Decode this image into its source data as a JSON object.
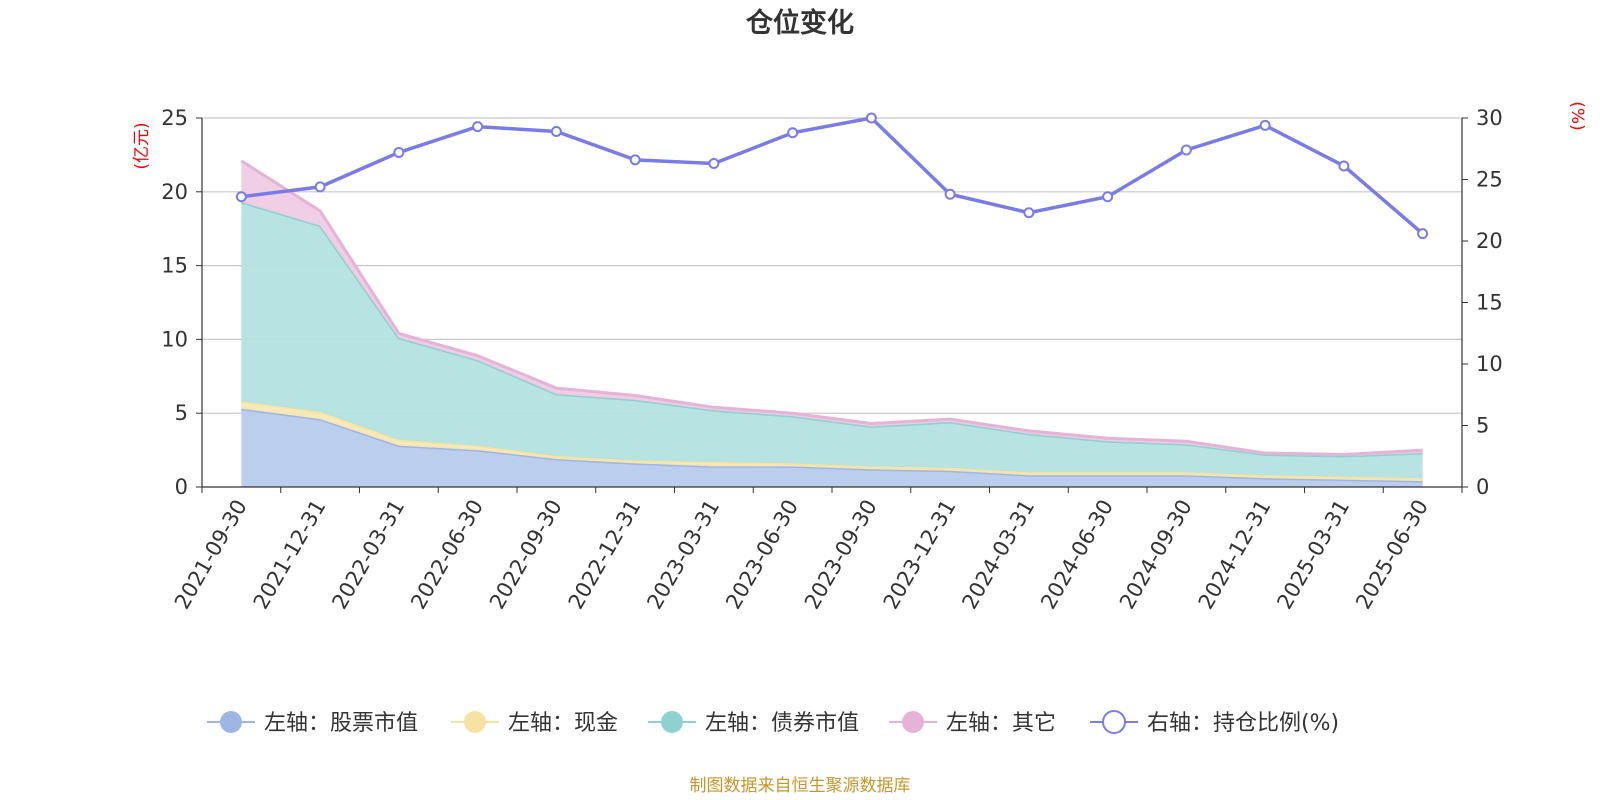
{
  "chart_data": {
    "type": "area",
    "title": "仓位变化",
    "left_axis_unit": "(亿元)",
    "right_axis_unit": "(%)",
    "ylim_left": [
      0,
      25
    ],
    "yticks_left": [
      0,
      5,
      10,
      15,
      20,
      25
    ],
    "ylim_right": [
      0,
      30
    ],
    "yticks_right": [
      0,
      5,
      10,
      15,
      20,
      25,
      30
    ],
    "grid": true,
    "legend_position": "bottom",
    "stacked": true,
    "categories": [
      "2021-09-30",
      "2021-12-31",
      "2022-03-31",
      "2022-06-30",
      "2022-09-30",
      "2022-12-31",
      "2023-03-31",
      "2023-06-30",
      "2023-09-30",
      "2023-12-31",
      "2024-03-31",
      "2024-06-30",
      "2024-09-30",
      "2024-12-31",
      "2025-03-31",
      "2025-06-30"
    ],
    "series": [
      {
        "name": "左轴：股票市值",
        "axis": "left",
        "kind": "area",
        "color": "#9db6e3",
        "fill": "#b8cbec",
        "values": [
          5.3,
          4.6,
          2.8,
          2.5,
          1.9,
          1.6,
          1.4,
          1.4,
          1.2,
          1.1,
          0.8,
          0.8,
          0.8,
          0.6,
          0.5,
          0.4
        ]
      },
      {
        "name": "左轴：现金",
        "axis": "left",
        "kind": "area",
        "color": "#f7e3a1",
        "fill": "#f7e8b4",
        "values": [
          0.5,
          0.5,
          0.4,
          0.3,
          0.2,
          0.2,
          0.3,
          0.2,
          0.2,
          0.2,
          0.2,
          0.2,
          0.2,
          0.2,
          0.2,
          0.2
        ]
      },
      {
        "name": "左轴：债券市值",
        "axis": "left",
        "kind": "area",
        "color": "#8fd0d0",
        "fill": "#b3e1e1",
        "values": [
          13.5,
          12.6,
          6.9,
          5.8,
          4.2,
          4.1,
          3.5,
          3.2,
          2.7,
          3.1,
          2.6,
          2.1,
          1.9,
          1.4,
          1.4,
          1.7
        ]
      },
      {
        "name": "左轴：其它",
        "axis": "left",
        "kind": "area",
        "color": "#e5b3d7",
        "fill": "#efcbe4",
        "values": [
          2.8,
          1.0,
          0.3,
          0.3,
          0.4,
          0.3,
          0.2,
          0.2,
          0.2,
          0.2,
          0.2,
          0.2,
          0.2,
          0.1,
          0.1,
          0.2
        ]
      },
      {
        "name": "右轴：持仓比例(%)",
        "axis": "right",
        "kind": "line",
        "color": "#7b7be8",
        "values": [
          23.6,
          24.4,
          27.2,
          29.3,
          28.9,
          26.6,
          26.3,
          28.8,
          30.0,
          23.8,
          22.3,
          23.6,
          27.4,
          29.4,
          26.1,
          20.6
        ]
      }
    ]
  },
  "source_note": "制图数据来自恒生聚源数据库"
}
